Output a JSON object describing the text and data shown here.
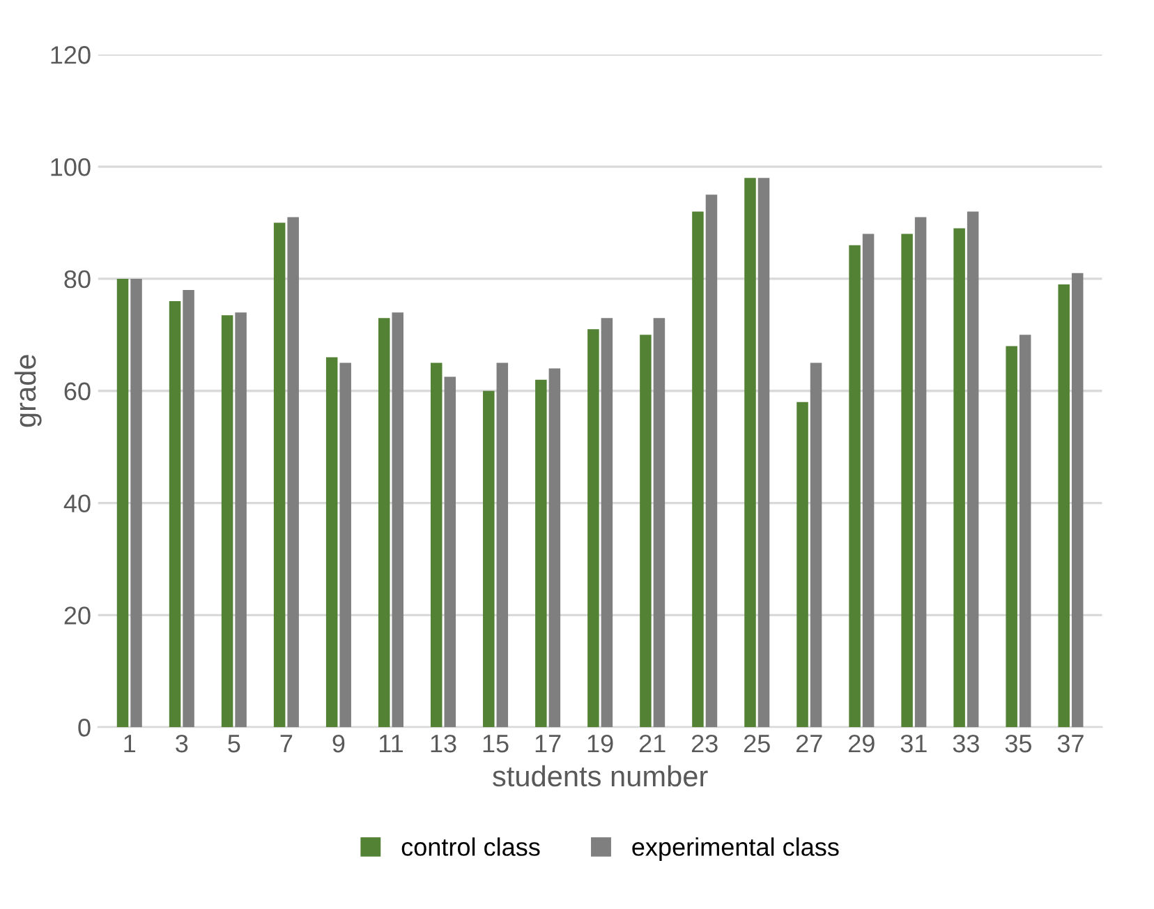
{
  "chart_data": {
    "type": "bar",
    "xlabel": "students number",
    "ylabel": "grade",
    "categories": [
      "1",
      "3",
      "5",
      "7",
      "9",
      "11",
      "13",
      "15",
      "17",
      "19",
      "21",
      "23",
      "25",
      "27",
      "29",
      "31",
      "33",
      "35",
      "37"
    ],
    "series": [
      {
        "name": "control class",
        "color": "#548235",
        "values": [
          80,
          76,
          73.5,
          90,
          66,
          73,
          65,
          60,
          62,
          71,
          70,
          92,
          98,
          58,
          86,
          88,
          89,
          68,
          79
        ]
      },
      {
        "name": "experimental class",
        "color": "#7f7f7f",
        "values": [
          80,
          78,
          74,
          91,
          65,
          74,
          62.5,
          65,
          64,
          73,
          73,
          95,
          98,
          65,
          88,
          91,
          92,
          70,
          81
        ]
      }
    ],
    "ylim": [
      0,
      120
    ],
    "yticks": [
      0,
      20,
      40,
      60,
      80,
      100,
      120
    ],
    "grid": "y",
    "legend": "bottom"
  }
}
